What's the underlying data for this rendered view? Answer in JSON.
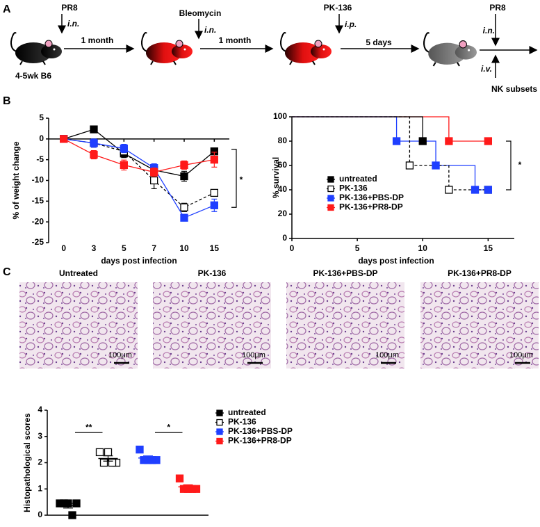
{
  "panel_labels": [
    "A",
    "B",
    "C"
  ],
  "schematic": {
    "steps": [
      {
        "agent": "PR8",
        "route": "i.n."
      },
      {
        "agent": "Bleomycin",
        "route": "i.n."
      },
      {
        "agent": "PK-136",
        "route": "i.p."
      }
    ],
    "intervals": [
      "1 month",
      "1 month",
      "5 days"
    ],
    "mouse_label": "4-5wk B6",
    "challenge": {
      "agent": "PR8",
      "route_in": "i.n.",
      "route_iv": "i.v.",
      "cells": "NK subsets"
    }
  },
  "chart_data": [
    {
      "type": "line",
      "xlabel": "days post infection",
      "ylabel": "% of weight change",
      "categories": [
        "0",
        "3",
        "5",
        "7",
        "10",
        "15"
      ],
      "ylim": [
        -25,
        5
      ],
      "yticks": [
        -25,
        -20,
        -15,
        -10,
        -5,
        0,
        5
      ],
      "series": [
        {
          "color": "#000000",
          "marker": "filled",
          "dashed": false,
          "values": [
            0,
            2.3,
            -3.5,
            -7.5,
            -9,
            -3
          ],
          "errors": [
            0,
            0.6,
            1,
            1,
            1.2,
            0.5
          ]
        },
        {
          "color": "#000000",
          "marker": "open",
          "dashed": true,
          "values": [
            0,
            -1,
            -3,
            -10,
            -16.5,
            -13
          ],
          "errors": [
            0,
            1,
            1,
            2,
            1,
            0.8
          ]
        },
        {
          "color": "#1f3fff",
          "marker": "filled",
          "dashed": false,
          "values": [
            0,
            -1,
            -2.3,
            -7,
            -19,
            -16
          ],
          "errors": [
            0,
            1,
            1,
            1,
            0.6,
            1.5
          ]
        },
        {
          "color": "#ff1a1a",
          "marker": "filled",
          "dashed": false,
          "values": [
            0,
            -3.8,
            -6.3,
            -8,
            -6.3,
            -5
          ],
          "errors": [
            0,
            1,
            1.2,
            1,
            1,
            1.8
          ]
        }
      ],
      "annotations": [
        {
          "text": "*"
        }
      ]
    },
    {
      "type": "step",
      "xlabel": "days post infection",
      "ylabel": "% survival",
      "xlim": [
        0,
        17
      ],
      "xticks": [
        0,
        5,
        10,
        15
      ],
      "ylim": [
        0,
        100
      ],
      "yticks": [
        0,
        20,
        40,
        60,
        80,
        100
      ],
      "series": [
        {
          "name": "untreated",
          "color": "#000000",
          "marker": "filled",
          "dashed": false,
          "x": [
            0,
            10
          ],
          "values": [
            100,
            80
          ]
        },
        {
          "name": "PK-136",
          "color": "#000000",
          "marker": "open",
          "dashed": true,
          "x": [
            0,
            9,
            12,
            15
          ],
          "values": [
            100,
            60,
            40,
            40
          ]
        },
        {
          "name": "PK-136+PBS-DP",
          "color": "#1f3fff",
          "marker": "filled",
          "dashed": false,
          "x": [
            0,
            8,
            11,
            14,
            15
          ],
          "values": [
            100,
            80,
            60,
            40,
            40
          ]
        },
        {
          "name": "PK-136+PR8-DP",
          "color": "#ff1a1a",
          "marker": "filled",
          "dashed": false,
          "x": [
            0,
            12,
            15
          ],
          "values": [
            100,
            80,
            80
          ]
        }
      ],
      "annotations": [
        {
          "text": "*"
        }
      ]
    },
    {
      "type": "dot",
      "ylabel": "Histopathological scores",
      "ylim": [
        0,
        4
      ],
      "yticks": [
        0,
        1,
        2,
        3,
        4
      ],
      "series": [
        {
          "name": "untreated",
          "color": "#000000",
          "marker": "filled",
          "dashed": false,
          "values": [
            0.45,
            0.45,
            0.45,
            0.45,
            0
          ],
          "mean": 0.36,
          "error": 0.09
        },
        {
          "name": "PK-136",
          "color": "#000000",
          "marker": "open",
          "dashed": true,
          "values": [
            2.4,
            2.4,
            2.0,
            2.0,
            2.0
          ],
          "mean": 2.16,
          "error": 0.1
        },
        {
          "name": "PK-136+PBS-DP",
          "color": "#1f3fff",
          "marker": "filled",
          "dashed": false,
          "values": [
            2.5,
            2.1,
            2.1,
            2.1,
            2.1
          ],
          "mean": 2.18,
          "error": 0.08
        },
        {
          "name": "PK-136+PR8-DP",
          "color": "#ff1a1a",
          "marker": "filled",
          "dashed": false,
          "values": [
            1.4,
            1.0,
            1.0,
            1.0,
            1.0
          ],
          "mean": 1.08,
          "error": 0.08
        }
      ],
      "comparisons": [
        {
          "groups": [
            0,
            1
          ],
          "text": "**"
        },
        {
          "groups": [
            2,
            3
          ],
          "text": "*"
        }
      ]
    }
  ],
  "histology": {
    "panels": [
      {
        "title": "Untreated",
        "scale": "100μm"
      },
      {
        "title": "PK-136",
        "scale": "100μm"
      },
      {
        "title": "PK-136+PBS-DP",
        "scale": "100μm"
      },
      {
        "title": "PK-136+PR8-DP",
        "scale": "100μm"
      }
    ]
  }
}
